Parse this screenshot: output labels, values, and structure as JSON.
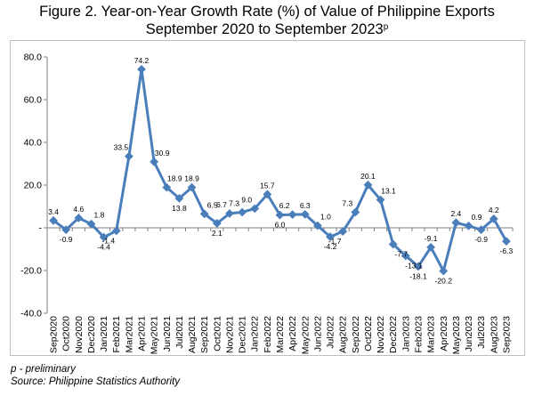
{
  "chart_data": {
    "type": "line",
    "title_line1": "Figure 2. Year-on-Year Growth Rate (%) of Value of Philippine Exports",
    "title_line2": "September 2020 to September 2023",
    "title_suffix": "p",
    "xlabel": "",
    "ylabel": "",
    "ylim": [
      -40,
      80
    ],
    "yticks": [
      "-40.0",
      "-20.0",
      "-",
      "20.0",
      "40.0",
      "60.0",
      "80.0"
    ],
    "ytick_values": [
      -40,
      -20,
      0,
      20,
      40,
      60,
      80
    ],
    "grid": false,
    "legend": "none",
    "line_color": "#4a7ebb",
    "categories": [
      "Sep2020",
      "Oct2020",
      "Nov2020",
      "Dec2020",
      "Jan2021",
      "Feb2021",
      "Mar2021",
      "Apr2021",
      "May2021",
      "Jun2021",
      "Jul2021",
      "Aug2021",
      "Sep2021",
      "Oct2021",
      "Nov2021",
      "Dec2021",
      "Jan2022",
      "Feb2022",
      "Mar2022",
      "Apr2022",
      "May2022",
      "Jun2022",
      "Jul2022",
      "Aug2022",
      "Sep2022",
      "Oct2022",
      "Nov2022",
      "Dec2022",
      "Jan2023",
      "Feb2023",
      "Mar2023",
      "Apr2023",
      "May2023",
      "Jun2023",
      "Jul2023",
      "Aug2023",
      "Sep2023"
    ],
    "values": [
      3.4,
      -0.9,
      4.6,
      1.8,
      -4.4,
      -1.4,
      33.5,
      74.2,
      30.9,
      18.9,
      13.8,
      18.9,
      6.5,
      2.1,
      6.7,
      7.3,
      9.0,
      15.7,
      6.0,
      6.2,
      6.3,
      1.0,
      -4.2,
      -1.7,
      7.3,
      20.1,
      13.1,
      -7.7,
      -13.1,
      -18.1,
      -9.1,
      -20.2,
      2.4,
      0.9,
      -0.9,
      4.2,
      -6.3
    ],
    "data_labels": [
      "3.4",
      "-0.9",
      "4.6",
      "1.8",
      "-4.4",
      "-1.4",
      "33.5",
      "74.2",
      "30.9",
      "18.9",
      "13.8",
      "18.9",
      "6.5",
      "2.1",
      "6.7",
      "7.3",
      "9.0",
      "15.7",
      "6.0",
      "6.2",
      "6.3",
      "1.0",
      "-4.2",
      "-1.7",
      "7.3",
      "20.1",
      "13.1",
      "-7.7",
      "-13.1",
      "-18.1",
      "-9.1",
      "-20.2",
      "2.4",
      "0.9",
      "-0.9",
      "4.2",
      "-6.3"
    ]
  },
  "notes": {
    "preliminary": "p - preliminary",
    "source": "Source: Philippine Statistics Authority"
  }
}
